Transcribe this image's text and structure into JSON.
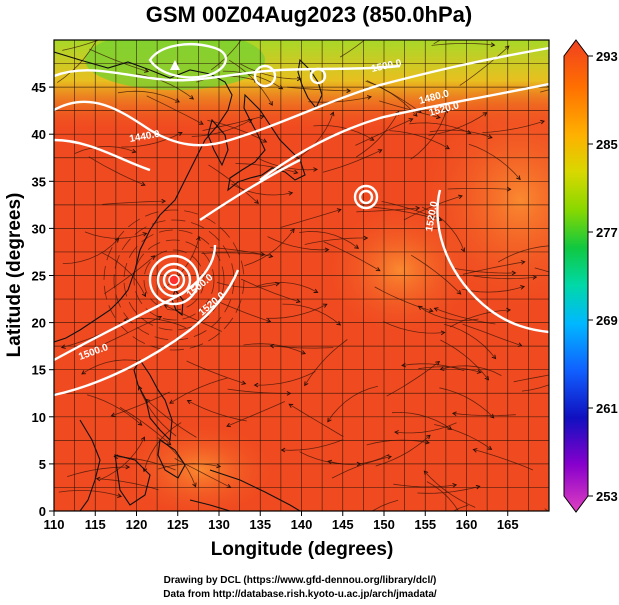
{
  "title": "GSM 00Z04Aug2023 (850.0hPa)",
  "xlabel": "Longitude (degrees)",
  "ylabel": "Latitude  (degrees)",
  "x_ticks": [
    "110",
    "115",
    "120",
    "125",
    "130",
    "135",
    "140",
    "145",
    "150",
    "155",
    "160",
    "165"
  ],
  "y_ticks": [
    "0",
    "5",
    "10",
    "15",
    "20",
    "25",
    "30",
    "35",
    "40",
    "45"
  ],
  "colorbar": {
    "ticks": [
      "293",
      "285",
      "277",
      "269",
      "261",
      "253"
    ],
    "min": 253,
    "max": 293,
    "colors": [
      "#e040c0",
      "#8800cc",
      "#1010c0",
      "#1060ff",
      "#00b8ff",
      "#00d8a8",
      "#10c840",
      "#88d800",
      "#d8d800",
      "#ffb000",
      "#ff7000",
      "#f04020"
    ]
  },
  "contour_labels": [
    "1500.0",
    "1480.0",
    "1520.0",
    "1440.0",
    "1500.0",
    "1520.0",
    "1500.0",
    "1520.0"
  ],
  "credits": {
    "line1": "Drawing by DCL (https://www.gfd-dennou.org/library/dcl/)",
    "line2": "Data from http://database.rish.kyoto-u.ac.jp/arch/jmadata/"
  },
  "map": {
    "lon_range": [
      110,
      170
    ],
    "lat_range": [
      0,
      50
    ],
    "field_colors": {
      "base": "#f04a20",
      "warm": "#f87a20",
      "cool": "#f88838",
      "cold_north": "#c8e030",
      "coldest": "#44cc30"
    }
  }
}
